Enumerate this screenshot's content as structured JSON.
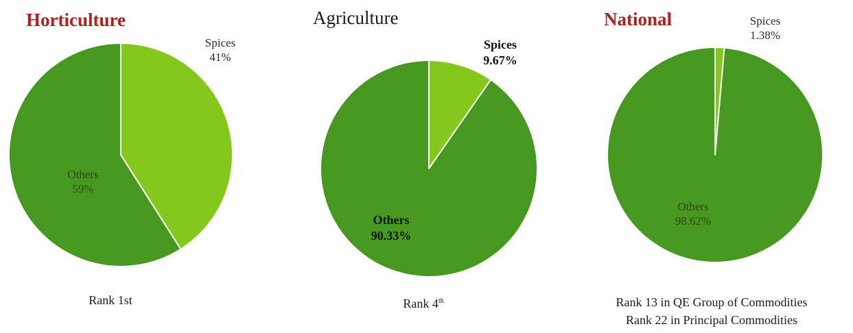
{
  "chart_data": [
    {
      "type": "pie",
      "title": "Horticulture",
      "slices": [
        {
          "label": "Spices",
          "value": 41,
          "value_label": "41%",
          "color": "#84c81e"
        },
        {
          "label": "Others",
          "value": 59,
          "value_label": "59%",
          "color": "#479820"
        }
      ],
      "caption": "Rank 1st"
    },
    {
      "type": "pie",
      "title": "Agriculture",
      "slices": [
        {
          "label": "Spices",
          "value": 9.67,
          "value_label": "9.67%",
          "color": "#84c81e"
        },
        {
          "label": "Others",
          "value": 90.33,
          "value_label": "90.33%",
          "color": "#479820"
        }
      ],
      "caption_prefix": "Rank 4",
      "caption_sup": "th"
    },
    {
      "type": "pie",
      "title": "National",
      "slices": [
        {
          "label": "Spices",
          "value": 1.38,
          "value_label": "1.38%",
          "color": "#84c81e"
        },
        {
          "label": "Others",
          "value": 98.62,
          "value_label": "98.62%",
          "color": "#479820"
        }
      ],
      "caption_lines": [
        "Rank 13 in QE Group of Commodities",
        "Rank 22  in Principal Commodities"
      ]
    }
  ],
  "colors": {
    "title_accent": "#b0201e",
    "slice_border": "#ffffff"
  }
}
